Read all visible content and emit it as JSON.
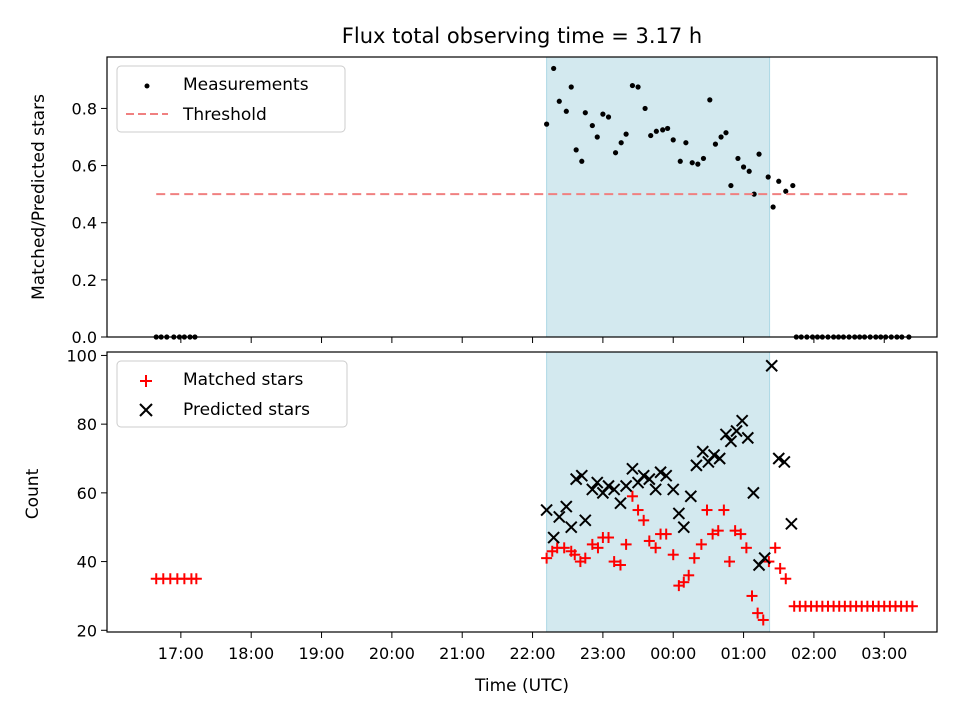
{
  "title": "Flux total observing time = 3.17 h",
  "xlabel": "Time (UTC)",
  "xticks": [
    "17:00",
    "18:00",
    "19:00",
    "20:00",
    "21:00",
    "22:00",
    "23:00",
    "00:00",
    "01:00",
    "02:00",
    "03:00"
  ],
  "shaded_interval": {
    "start": 22.2,
    "end": 25.37,
    "color": "#d3e9ef"
  },
  "chart_data": [
    {
      "type": "scatter",
      "ylabel": "Matched/Predicted stars",
      "ylim": [
        0,
        0.98
      ],
      "yticks": [
        "0.0",
        "0.2",
        "0.4",
        "0.6",
        "0.8"
      ],
      "legend_position": "top-left",
      "series": [
        {
          "name": "Measurements",
          "marker": "dot",
          "color": "#000000",
          "points": [
            [
              16.65,
              0
            ],
            [
              16.72,
              0
            ],
            [
              16.8,
              0
            ],
            [
              16.9,
              0
            ],
            [
              16.98,
              0
            ],
            [
              17.05,
              0
            ],
            [
              17.13,
              0
            ],
            [
              17.2,
              0
            ],
            [
              22.2,
              0.745
            ],
            [
              22.3,
              0.94
            ],
            [
              22.38,
              0.825
            ],
            [
              22.48,
              0.79
            ],
            [
              22.55,
              0.875
            ],
            [
              22.62,
              0.655
            ],
            [
              22.7,
              0.615
            ],
            [
              22.75,
              0.785
            ],
            [
              22.85,
              0.74
            ],
            [
              22.92,
              0.7
            ],
            [
              23.0,
              0.78
            ],
            [
              23.08,
              0.77
            ],
            [
              23.18,
              0.645
            ],
            [
              23.26,
              0.68
            ],
            [
              23.33,
              0.71
            ],
            [
              23.42,
              0.88
            ],
            [
              23.5,
              0.875
            ],
            [
              23.6,
              0.8
            ],
            [
              23.68,
              0.705
            ],
            [
              23.76,
              0.72
            ],
            [
              23.85,
              0.725
            ],
            [
              23.92,
              0.73
            ],
            [
              24.0,
              0.69
            ],
            [
              24.1,
              0.615
            ],
            [
              24.18,
              0.68
            ],
            [
              24.27,
              0.61
            ],
            [
              24.35,
              0.605
            ],
            [
              24.43,
              0.625
            ],
            [
              24.52,
              0.83
            ],
            [
              24.6,
              0.675
            ],
            [
              24.68,
              0.7
            ],
            [
              24.75,
              0.715
            ],
            [
              24.82,
              0.53
            ],
            [
              24.92,
              0.625
            ],
            [
              25.0,
              0.595
            ],
            [
              25.08,
              0.58
            ],
            [
              25.15,
              0.5
            ],
            [
              25.22,
              0.64
            ],
            [
              25.35,
              0.56
            ],
            [
              25.42,
              0.455
            ],
            [
              25.5,
              0.545
            ],
            [
              25.6,
              0.51
            ],
            [
              25.7,
              0.53
            ],
            [
              25.75,
              0
            ],
            [
              25.82,
              0
            ],
            [
              25.9,
              0
            ],
            [
              25.98,
              0
            ],
            [
              26.05,
              0
            ],
            [
              26.12,
              0
            ],
            [
              26.2,
              0
            ],
            [
              26.28,
              0
            ],
            [
              26.35,
              0
            ],
            [
              26.42,
              0
            ],
            [
              26.5,
              0
            ],
            [
              26.58,
              0
            ],
            [
              26.65,
              0
            ],
            [
              26.72,
              0
            ],
            [
              26.8,
              0
            ],
            [
              26.88,
              0
            ],
            [
              26.95,
              0
            ],
            [
              27.02,
              0
            ],
            [
              27.1,
              0
            ],
            [
              27.18,
              0
            ],
            [
              27.25,
              0
            ],
            [
              27.35,
              0
            ]
          ]
        },
        {
          "name": "Threshold",
          "marker": "dashed-line",
          "color": "#f08080",
          "points": [
            [
              16.65,
              0.5
            ],
            [
              27.35,
              0.5
            ]
          ]
        }
      ]
    },
    {
      "type": "scatter",
      "ylabel": "Count",
      "ylim": [
        19.5,
        101
      ],
      "yticks": [
        "20",
        "40",
        "60",
        "80",
        "100"
      ],
      "legend_position": "top-left",
      "series": [
        {
          "name": "Matched stars",
          "marker": "plus",
          "color": "#ff0000",
          "points": [
            [
              16.65,
              35
            ],
            [
              16.75,
              35
            ],
            [
              16.85,
              35
            ],
            [
              16.95,
              35
            ],
            [
              17.05,
              35
            ],
            [
              17.15,
              35
            ],
            [
              17.22,
              35
            ],
            [
              22.2,
              41
            ],
            [
              22.28,
              43
            ],
            [
              22.35,
              44
            ],
            [
              22.45,
              44
            ],
            [
              22.55,
              43
            ],
            [
              22.6,
              42
            ],
            [
              22.68,
              40
            ],
            [
              22.75,
              41
            ],
            [
              22.85,
              45
            ],
            [
              22.93,
              44
            ],
            [
              23.0,
              47
            ],
            [
              23.08,
              47
            ],
            [
              23.16,
              40
            ],
            [
              23.25,
              39
            ],
            [
              23.33,
              45
            ],
            [
              23.42,
              59
            ],
            [
              23.5,
              55
            ],
            [
              23.58,
              52
            ],
            [
              23.66,
              46
            ],
            [
              23.75,
              44
            ],
            [
              23.82,
              48
            ],
            [
              23.9,
              48
            ],
            [
              24.0,
              42
            ],
            [
              24.08,
              33
            ],
            [
              24.15,
              34
            ],
            [
              24.22,
              36
            ],
            [
              24.3,
              41
            ],
            [
              24.4,
              45
            ],
            [
              24.48,
              55
            ],
            [
              24.56,
              48
            ],
            [
              24.64,
              49
            ],
            [
              24.72,
              55
            ],
            [
              24.8,
              40
            ],
            [
              24.88,
              49
            ],
            [
              24.96,
              48
            ],
            [
              25.04,
              44
            ],
            [
              25.12,
              30
            ],
            [
              25.2,
              25
            ],
            [
              25.28,
              23
            ],
            [
              25.36,
              40
            ],
            [
              25.45,
              44
            ],
            [
              25.52,
              38
            ],
            [
              25.6,
              35
            ],
            [
              25.72,
              27
            ],
            [
              25.8,
              27
            ],
            [
              25.88,
              27
            ],
            [
              25.96,
              27
            ],
            [
              26.04,
              27
            ],
            [
              26.12,
              27
            ],
            [
              26.2,
              27
            ],
            [
              26.28,
              27
            ],
            [
              26.36,
              27
            ],
            [
              26.44,
              27
            ],
            [
              26.52,
              27
            ],
            [
              26.6,
              27
            ],
            [
              26.68,
              27
            ],
            [
              26.76,
              27
            ],
            [
              26.84,
              27
            ],
            [
              26.92,
              27
            ],
            [
              27.0,
              27
            ],
            [
              27.08,
              27
            ],
            [
              27.16,
              27
            ],
            [
              27.24,
              27
            ],
            [
              27.32,
              27
            ],
            [
              27.4,
              27
            ]
          ]
        },
        {
          "name": "Predicted stars",
          "marker": "x",
          "color": "#000000",
          "points": [
            [
              22.2,
              55
            ],
            [
              22.3,
              47
            ],
            [
              22.38,
              53
            ],
            [
              22.48,
              56
            ],
            [
              22.55,
              50
            ],
            [
              22.62,
              64
            ],
            [
              22.7,
              65
            ],
            [
              22.75,
              52
            ],
            [
              22.85,
              61
            ],
            [
              22.92,
              63
            ],
            [
              23.0,
              60
            ],
            [
              23.08,
              62
            ],
            [
              23.16,
              61
            ],
            [
              23.25,
              57
            ],
            [
              23.33,
              62
            ],
            [
              23.42,
              67
            ],
            [
              23.5,
              63
            ],
            [
              23.58,
              65
            ],
            [
              23.66,
              64
            ],
            [
              23.75,
              61
            ],
            [
              23.82,
              66
            ],
            [
              23.9,
              65
            ],
            [
              24.0,
              61
            ],
            [
              24.08,
              54
            ],
            [
              24.15,
              50
            ],
            [
              24.25,
              59
            ],
            [
              24.33,
              68
            ],
            [
              24.42,
              72
            ],
            [
              24.5,
              69
            ],
            [
              24.58,
              71
            ],
            [
              24.66,
              70
            ],
            [
              24.75,
              77
            ],
            [
              24.82,
              75
            ],
            [
              24.9,
              78
            ],
            [
              24.98,
              81
            ],
            [
              25.06,
              76
            ],
            [
              25.14,
              60
            ],
            [
              25.22,
              39
            ],
            [
              25.3,
              41
            ],
            [
              25.4,
              97
            ],
            [
              25.5,
              70
            ],
            [
              25.58,
              69
            ],
            [
              25.68,
              51
            ]
          ]
        }
      ]
    }
  ]
}
